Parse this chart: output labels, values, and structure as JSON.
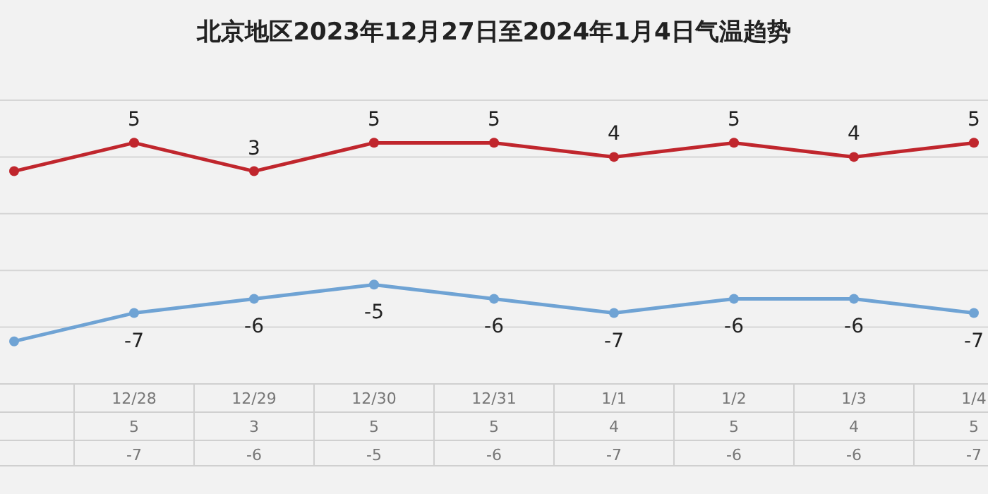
{
  "chart_data": {
    "type": "line",
    "title": "北京地区2023年12月27日至2024年1月4日气温趋势",
    "categories": [
      null,
      "12/28",
      "12/29",
      "12/30",
      "12/31",
      "1/1",
      "1/2",
      "1/3",
      "1/4"
    ],
    "series": [
      {
        "color": "#c0262d",
        "values": [
          3,
          5,
          3,
          5,
          5,
          4,
          5,
          4,
          5
        ],
        "value_labels": [
          null,
          "5",
          "3",
          "5",
          "5",
          "4",
          "5",
          "4",
          "5"
        ]
      },
      {
        "color": "#6fa3d4",
        "values": [
          -9,
          -7,
          -6,
          -5,
          -6,
          -7,
          -6,
          -6,
          -7
        ],
        "value_labels": [
          null,
          "-7",
          "-6",
          "-5",
          "-6",
          "-7",
          "-6",
          "-6",
          "-7"
        ]
      }
    ],
    "ylim": [
      -12,
      8
    ],
    "yticks": [
      {
        "value": -8,
        "label": null
      },
      {
        "value": -4,
        "label": null
      },
      {
        "value": 0,
        "label": null
      },
      {
        "value": 4,
        "label": null
      },
      {
        "value": 8,
        "label": null
      }
    ],
    "grid": "y",
    "marker": "circle",
    "line_style": "solid",
    "tick_labels": "x"
  }
}
